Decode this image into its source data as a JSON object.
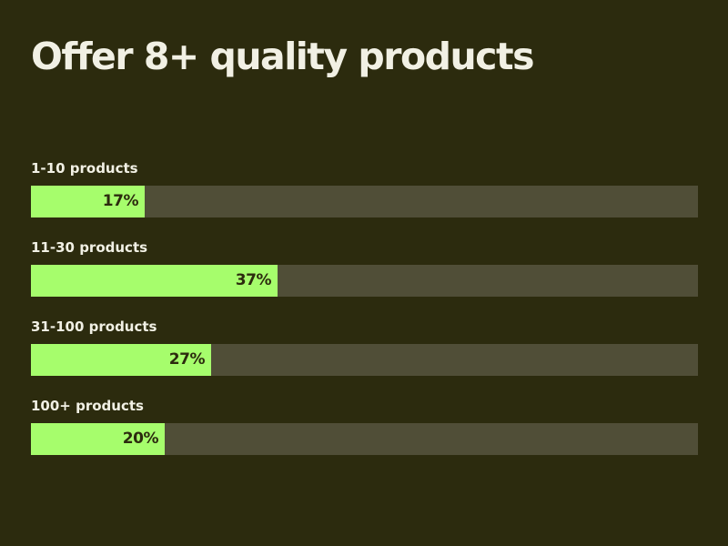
{
  "colors": {
    "background": "#2c2b0e",
    "title_text": "#f1f0e4",
    "label_text": "#f1f0e4",
    "bar_fill": "#a6fd6c",
    "bar_track": "#504e37",
    "value_text": "#2c2b0e"
  },
  "chart_data": {
    "type": "bar",
    "orientation": "horizontal",
    "title": "Offer 8+ quality products",
    "xlim": [
      0,
      100
    ],
    "grid": false,
    "categories": [
      "1-10 products",
      "11-30 products",
      "31-100 products",
      "100+ products"
    ],
    "values": [
      17,
      37,
      27,
      20
    ],
    "value_labels": [
      "17%",
      "37%",
      "27%",
      "20%"
    ]
  }
}
